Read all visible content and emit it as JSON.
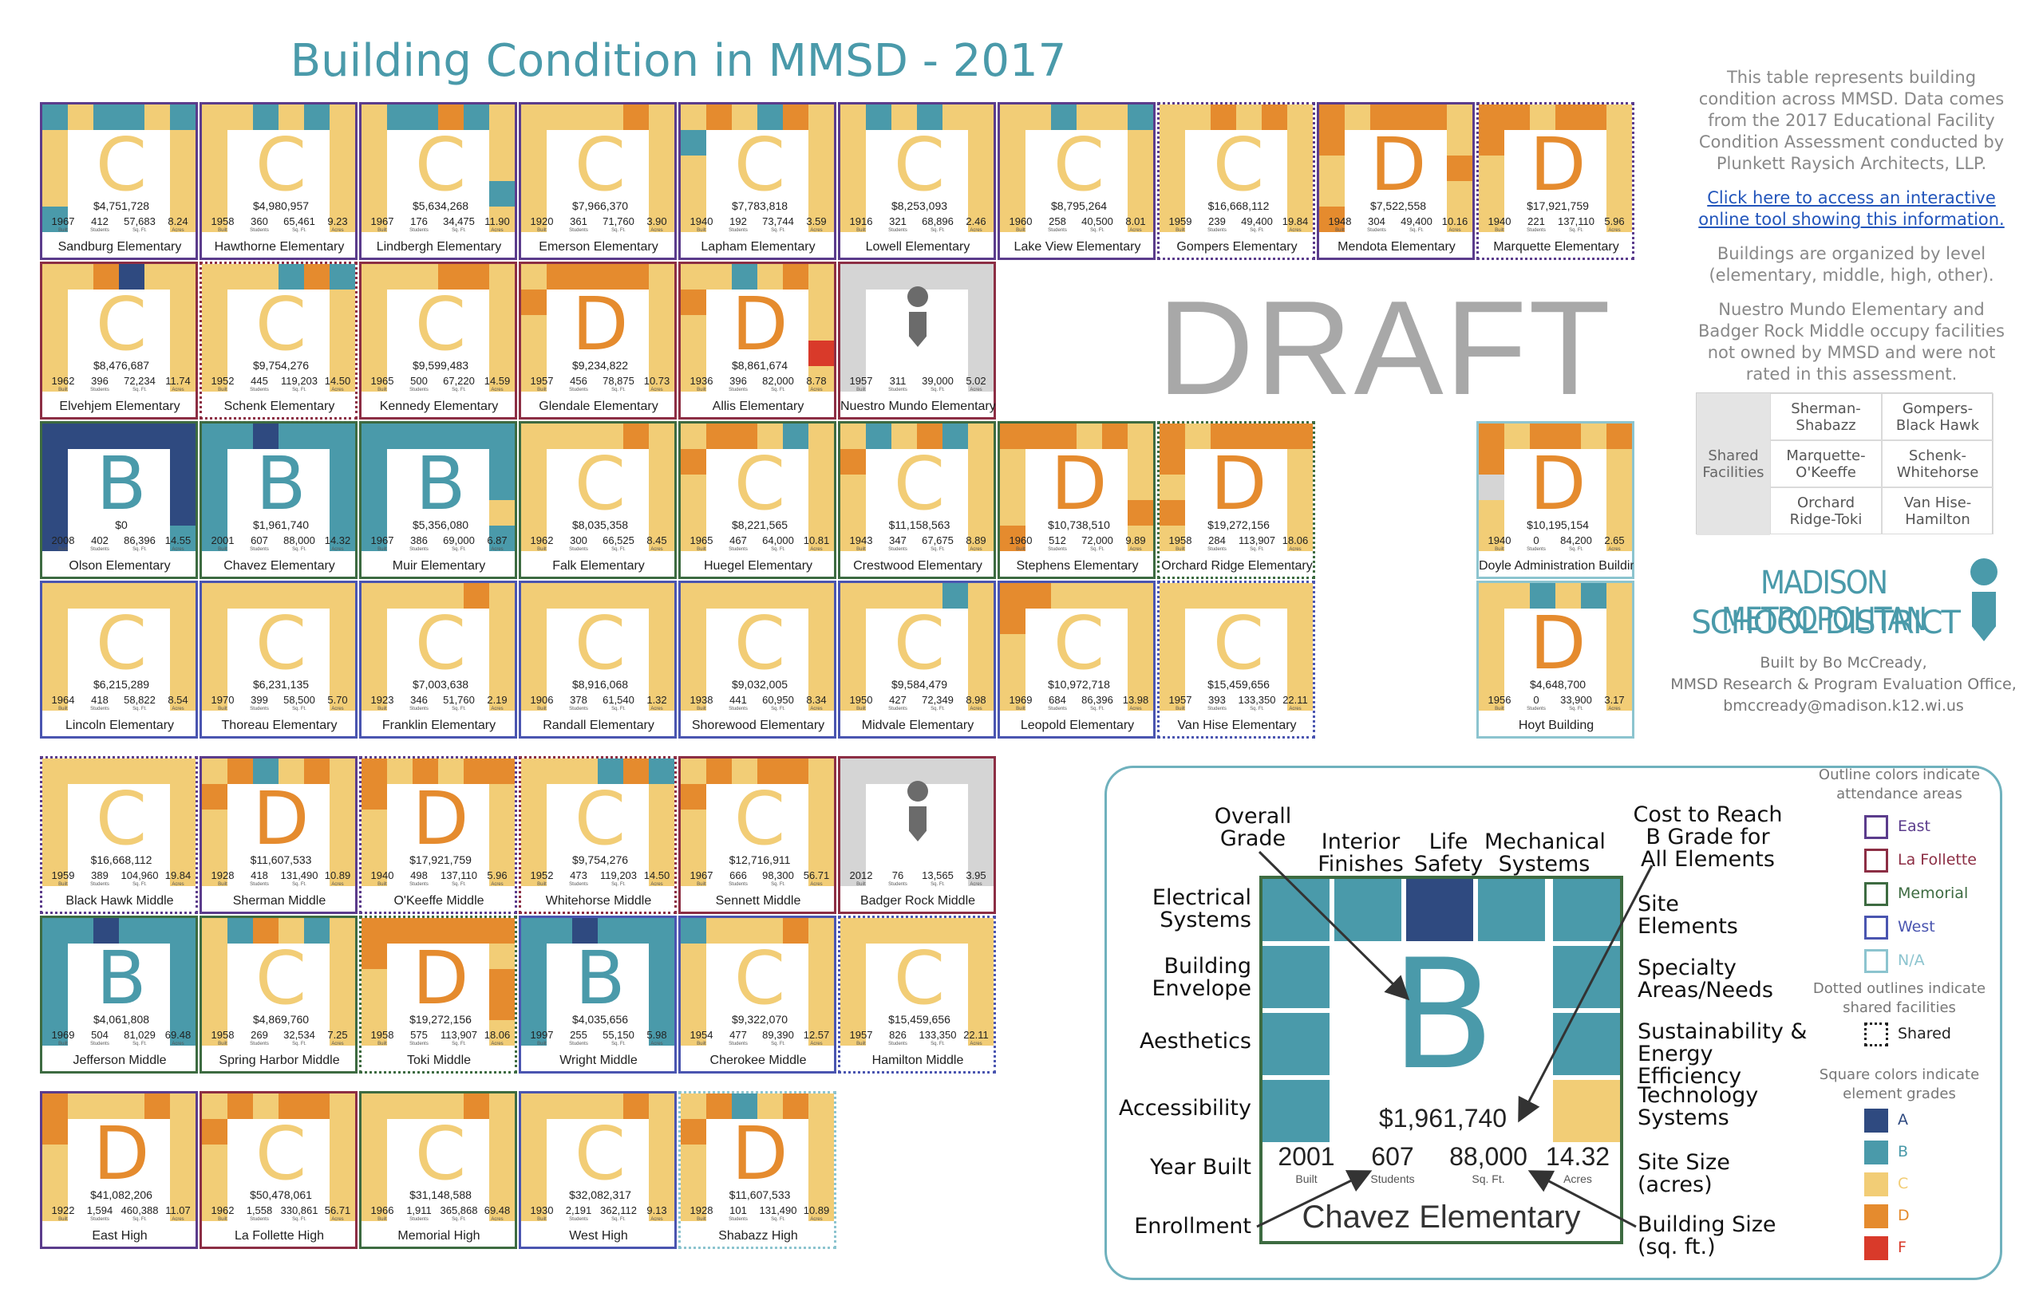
{
  "title": "Building Condition in MMSD - 2017",
  "watermark": "DRAFT",
  "colors": {
    "A": "#2f4a80",
    "B": "#4a9aaa",
    "C": "#f2cd76",
    "D": "#e58b2e",
    "F": "#d93a2a",
    "gray": "#d5d5d5",
    "East": "#5b3c8c",
    "La Follette": "#8c2e44",
    "Memorial": "#3d6b41",
    "West": "#4a55b0",
    "N/A": "#8cc4cf"
  },
  "unit_labels": [
    "Built",
    "Students",
    "Sq. Ft.",
    "Acres"
  ],
  "tiles": [
    {
      "name": "Sandburg Elementary",
      "grade": "C",
      "cost": "$4,751,728",
      "year": "1967",
      "students": "412",
      "sqft": "57,683",
      "acres": "8.24",
      "outline": "East",
      "shared": false,
      "squares": "BCBBCBCCCCCCBCDCC"
    },
    {
      "name": "Hawthorne Elementary",
      "grade": "C",
      "cost": "$4,980,957",
      "year": "1958",
      "students": "360",
      "sqft": "65,461",
      "acres": "9.23",
      "outline": "East",
      "shared": false,
      "squares": "CCBCBCCCCCCCCCCCC"
    },
    {
      "name": "Lindbergh Elementary",
      "grade": "C",
      "cost": "$5,634,268",
      "year": "1967",
      "students": "176",
      "sqft": "34,475",
      "acres": "11.90",
      "outline": "East",
      "shared": false,
      "squares": "CBBDBCCCCCCBCCCCC"
    },
    {
      "name": "Emerson Elementary",
      "grade": "C",
      "cost": "$7,966,370",
      "year": "1920",
      "students": "361",
      "sqft": "71,760",
      "acres": "3.90",
      "outline": "East",
      "shared": false,
      "squares": "CCCCDCCCCCCCCCCCC"
    },
    {
      "name": "Lapham Elementary",
      "grade": "C",
      "cost": "$7,783,818",
      "year": "1940",
      "students": "192",
      "sqft": "73,744",
      "acres": "3.59",
      "outline": "East",
      "shared": false,
      "squares": "CDCBDCBCCCCCCCCCC"
    },
    {
      "name": "Lowell Elementary",
      "grade": "C",
      "cost": "$8,253,093",
      "year": "1916",
      "students": "321",
      "sqft": "68,896",
      "acres": "2.46",
      "outline": "East",
      "shared": false,
      "squares": "CBCBCCCCCCCCCCCCC"
    },
    {
      "name": "Lake View Elementary",
      "grade": "C",
      "cost": "$8,795,264",
      "year": "1960",
      "students": "258",
      "sqft": "40,500",
      "acres": "8.01",
      "outline": "East",
      "shared": false,
      "squares": "CCBCCBCCCCCCCCCCC"
    },
    {
      "name": "Gompers Elementary",
      "grade": "C",
      "cost": "$16,668,112",
      "year": "1959",
      "students": "239",
      "sqft": "49,400",
      "acres": "19.84",
      "outline": "East",
      "shared": true,
      "squares": "CCDCDCCCCCCCCCCCC"
    },
    {
      "name": "Mendota Elementary",
      "grade": "D",
      "cost": "$7,522,558",
      "year": "1948",
      "students": "304",
      "sqft": "49,400",
      "acres": "10.16",
      "outline": "East",
      "shared": false,
      "squares": "DCDDDCDCCDCCDCCDC"
    },
    {
      "name": "Marquette Elementary",
      "grade": "D",
      "cost": "$17,921,759",
      "year": "1940",
      "students": "221",
      "sqft": "137,110",
      "acres": "5.96",
      "outline": "East",
      "shared": true,
      "squares": "DDCDDCDCCCCCCCCCC"
    },
    {
      "name": "Elvehjem Elementary",
      "grade": "C",
      "cost": "$8,476,687",
      "year": "1962",
      "students": "396",
      "sqft": "72,234",
      "acres": "11.74",
      "outline": "La Follette",
      "shared": false,
      "squares": "CCDACCCCCCCCCCCCC"
    },
    {
      "name": "Schenk Elementary",
      "grade": "C",
      "cost": "$9,754,276",
      "year": "1952",
      "students": "445",
      "sqft": "119,203",
      "acres": "14.50",
      "outline": "La Follette",
      "shared": true,
      "squares": "CCCBDBCCCCCCCCCCC"
    },
    {
      "name": "Kennedy Elementary",
      "grade": "C",
      "cost": "$9,599,483",
      "year": "1965",
      "students": "500",
      "sqft": "67,220",
      "acres": "14.59",
      "outline": "La Follette",
      "shared": false,
      "squares": "CCCDDCCCCCCCCCCCC"
    },
    {
      "name": "Glendale Elementary",
      "grade": "D",
      "cost": "$9,234,822",
      "year": "1957",
      "students": "456",
      "sqft": "78,875",
      "acres": "10.73",
      "outline": "La Follette",
      "shared": false,
      "squares": "CDDDDCDCCCCCCCCCC"
    },
    {
      "name": "Allis Elementary",
      "grade": "D",
      "cost": "$8,861,674",
      "year": "1936",
      "students": "396",
      "sqft": "82,000",
      "acres": "8.78",
      "outline": "La Follette",
      "shared": false,
      "squares": "CCBCDCDCCCCFCCCCC"
    },
    {
      "name": "Nuestro Mundo Elementary",
      "grade": "",
      "cost": "",
      "year": "1957",
      "students": "311",
      "sqft": "39,000",
      "acres": "5.02",
      "outline": "La Follette",
      "shared": false,
      "squares": "GGGGGGGGGGGGGGGGG"
    },
    {
      "name": "Olson Elementary",
      "grade": "B",
      "cost": "$0",
      "year": "2008",
      "students": "402",
      "sqft": "86,396",
      "acres": "14.55",
      "outline": "Memorial",
      "shared": false,
      "squares": "AAAAAAAAAAAAABAAA"
    },
    {
      "name": "Chavez Elementary",
      "grade": "B",
      "cost": "$1,961,740",
      "year": "2001",
      "students": "607",
      "sqft": "88,000",
      "acres": "14.32",
      "outline": "Memorial",
      "shared": false,
      "squares": "BBABBBBBBBBBBBBCB"
    },
    {
      "name": "Muir Elementary",
      "grade": "B",
      "cost": "$5,356,080",
      "year": "1967",
      "students": "386",
      "sqft": "69,000",
      "acres": "6.87",
      "outline": "Memorial",
      "shared": false,
      "squares": "BBBBBBBBBBBCBBBBC"
    },
    {
      "name": "Falk Elementary",
      "grade": "C",
      "cost": "$8,035,358",
      "year": "1962",
      "students": "300",
      "sqft": "66,525",
      "acres": "8.45",
      "outline": "Memorial",
      "shared": false,
      "squares": "CCCCDCCCCCCCCCCCC"
    },
    {
      "name": "Huegel Elementary",
      "grade": "C",
      "cost": "$8,221,565",
      "year": "1965",
      "students": "467",
      "sqft": "64,000",
      "acres": "10.81",
      "outline": "Memorial",
      "shared": false,
      "squares": "CDDCBCDCCCCCCCCCC"
    },
    {
      "name": "Crestwood Elementary",
      "grade": "C",
      "cost": "$11,158,563",
      "year": "1943",
      "students": "347",
      "sqft": "67,675",
      "acres": "8.89",
      "outline": "Memorial",
      "shared": false,
      "squares": "CBCDBCDCCCCCCCCCC"
    },
    {
      "name": "Stephens Elementary",
      "grade": "D",
      "cost": "$10,738,510",
      "year": "1960",
      "students": "512",
      "sqft": "72,000",
      "acres": "9.89",
      "outline": "Memorial",
      "shared": false,
      "squares": "DDDCDCCCCCCDDCCCC"
    },
    {
      "name": "Orchard Ridge Elementary",
      "grade": "D",
      "cost": "$19,272,156",
      "year": "1958",
      "students": "284",
      "sqft": "113,907",
      "acres": "18.06",
      "outline": "Memorial",
      "shared": true,
      "squares": "DCDDDDDCCCDCCCCCC"
    },
    {
      "name": "Lincoln Elementary",
      "grade": "C",
      "cost": "$6,215,289",
      "year": "1964",
      "students": "418",
      "sqft": "58,822",
      "acres": "8.54",
      "outline": "West",
      "shared": false,
      "squares": "CCCCCCCCCCCCCCCCC"
    },
    {
      "name": "Thoreau Elementary",
      "grade": "C",
      "cost": "$6,231,135",
      "year": "1970",
      "students": "399",
      "sqft": "58,500",
      "acres": "5.70",
      "outline": "West",
      "shared": false,
      "squares": "CCCCCCCCCCCCCCCCC"
    },
    {
      "name": "Franklin Elementary",
      "grade": "C",
      "cost": "$7,003,638",
      "year": "1923",
      "students": "346",
      "sqft": "51,760",
      "acres": "2.19",
      "outline": "West",
      "shared": false,
      "squares": "CCCCDCCCCCCCCCCCC"
    },
    {
      "name": "Randall Elementary",
      "grade": "C",
      "cost": "$8,916,068",
      "year": "1906",
      "students": "378",
      "sqft": "61,540",
      "acres": "1.32",
      "outline": "West",
      "shared": false,
      "squares": "CCCCCCCCCCCCCCCCC"
    },
    {
      "name": "Shorewood Elementary",
      "grade": "C",
      "cost": "$9,032,005",
      "year": "1938",
      "students": "441",
      "sqft": "60,950",
      "acres": "8.34",
      "outline": "West",
      "shared": false,
      "squares": "CCCCCCCCCCCCCCCCC"
    },
    {
      "name": "Midvale Elementary",
      "grade": "C",
      "cost": "$9,584,479",
      "year": "1950",
      "students": "427",
      "sqft": "72,349",
      "acres": "8.98",
      "outline": "West",
      "shared": false,
      "squares": "CCCCBCCCCCCCCCCCC"
    },
    {
      "name": "Leopold Elementary",
      "grade": "C",
      "cost": "$10,972,718",
      "year": "1969",
      "students": "684",
      "sqft": "86,396",
      "acres": "13.98",
      "outline": "West",
      "shared": false,
      "squares": "DDCCCCDCCCCCCCCCC"
    },
    {
      "name": "Van Hise Elementary",
      "grade": "C",
      "cost": "$15,459,656",
      "year": "1957",
      "students": "393",
      "sqft": "133,350",
      "acres": "22.11",
      "outline": "West",
      "shared": true,
      "squares": "CCCCCCCCCCCCCCCCC"
    },
    {
      "name": "Doyle Administration Building",
      "grade": "D",
      "cost": "$10,195,154",
      "year": "1940",
      "students": "0",
      "sqft": "84,200",
      "acres": "2.65",
      "outline": "N/A",
      "shared": false,
      "squares": "DCDDCDDCGCCCCCCCC"
    },
    {
      "name": "Hoyt Building",
      "grade": "D",
      "cost": "$4,648,700",
      "year": "1956",
      "students": "0",
      "sqft": "33,900",
      "acres": "3.17",
      "outline": "N/A",
      "shared": false,
      "squares": "CCBCBCCCCCCCCCCCC"
    },
    {
      "name": "Black Hawk Middle",
      "grade": "C",
      "cost": "$16,668,112",
      "year": "1959",
      "students": "389",
      "sqft": "104,960",
      "acres": "19.84",
      "outline": "East",
      "shared": true,
      "squares": "CCCCCCCCCCCCCCCCC"
    },
    {
      "name": "Sherman Middle",
      "grade": "D",
      "cost": "$11,607,533",
      "year": "1928",
      "students": "418",
      "sqft": "131,490",
      "acres": "10.89",
      "outline": "East",
      "shared": false,
      "squares": "CDBCDCDCCCCCCCCCC"
    },
    {
      "name": "O'Keeffe Middle",
      "grade": "D",
      "cost": "$17,921,759",
      "year": "1940",
      "students": "498",
      "sqft": "137,110",
      "acres": "5.96",
      "outline": "East",
      "shared": true,
      "squares": "DCDCDDDCCCCCCCCCC"
    },
    {
      "name": "Whitehorse Middle",
      "grade": "C",
      "cost": "$9,754,276",
      "year": "1952",
      "students": "473",
      "sqft": "119,203",
      "acres": "14.50",
      "outline": "La Follette",
      "shared": true,
      "squares": "CCCBDBCCCCCCCCCCC"
    },
    {
      "name": "Sennett Middle",
      "grade": "C",
      "cost": "$12,716,911",
      "year": "1967",
      "students": "666",
      "sqft": "98,300",
      "acres": "56.71",
      "outline": "La Follette",
      "shared": false,
      "squares": "CDCDDCDCCCCCCCCCC"
    },
    {
      "name": "Badger Rock Middle",
      "grade": "",
      "cost": "",
      "year": "2012",
      "students": "76",
      "sqft": "13,565",
      "acres": "3.95",
      "outline": "La Follette",
      "shared": false,
      "squares": "GGGGGGGGGGGGGGGGG"
    },
    {
      "name": "Jefferson Middle",
      "grade": "B",
      "cost": "$4,061,808",
      "year": "1969",
      "students": "504",
      "sqft": "81,029",
      "acres": "69.48",
      "outline": "Memorial",
      "shared": false,
      "squares": "BBABBBBBBBBBBBBBB"
    },
    {
      "name": "Spring Harbor Middle",
      "grade": "C",
      "cost": "$4,869,760",
      "year": "1958",
      "students": "269",
      "sqft": "32,534",
      "acres": "7.25",
      "outline": "Memorial",
      "shared": false,
      "squares": "CBDCBCCCCCCCCCCCC"
    },
    {
      "name": "Toki Middle",
      "grade": "D",
      "cost": "$19,272,156",
      "year": "1958",
      "students": "575",
      "sqft": "113,907",
      "acres": "18.06",
      "outline": "Memorial",
      "shared": true,
      "squares": "DDDDDDDCCDCDCCCCC"
    },
    {
      "name": "Wright Middle",
      "grade": "B",
      "cost": "$4,035,656",
      "year": "1997",
      "students": "255",
      "sqft": "55,150",
      "acres": "5.98",
      "outline": "West",
      "shared": false,
      "squares": "BBABBBBBBBBBBBBBB"
    },
    {
      "name": "Cherokee Middle",
      "grade": "C",
      "cost": "$9,322,070",
      "year": "1954",
      "students": "477",
      "sqft": "89,390",
      "acres": "12.57",
      "outline": "West",
      "shared": false,
      "squares": "BCCCDCCCCCCCCCCCC"
    },
    {
      "name": "Hamilton Middle",
      "grade": "C",
      "cost": "$15,459,656",
      "year": "1957",
      "students": "826",
      "sqft": "133,350",
      "acres": "22.11",
      "outline": "West",
      "shared": true,
      "squares": "CCCCCCCCCCCCCCCCC"
    },
    {
      "name": "East High",
      "grade": "D",
      "cost": "$41,082,206",
      "year": "1922",
      "students": "1,594",
      "sqft": "460,388",
      "acres": "11.07",
      "outline": "East",
      "shared": false,
      "squares": "DCCCDCDCCCCCCCCCC"
    },
    {
      "name": "La Follette High",
      "grade": "C",
      "cost": "$50,478,061",
      "year": "1962",
      "students": "1,558",
      "sqft": "330,861",
      "acres": "56.71",
      "outline": "La Follette",
      "shared": false,
      "squares": "CDCDDCDCCCCCCCCCC"
    },
    {
      "name": "Memorial High",
      "grade": "C",
      "cost": "$31,148,588",
      "year": "1966",
      "students": "1,911",
      "sqft": "365,868",
      "acres": "69.48",
      "outline": "Memorial",
      "shared": false,
      "squares": "CCCCDCCCCCCCCCCCC"
    },
    {
      "name": "West High",
      "grade": "C",
      "cost": "$32,082,317",
      "year": "1930",
      "students": "2,191",
      "sqft": "362,112",
      "acres": "9.13",
      "outline": "West",
      "shared": false,
      "squares": "CCCCDCCCCCCCCCCCC"
    },
    {
      "name": "Shabazz High",
      "grade": "D",
      "cost": "$11,607,533",
      "year": "1928",
      "students": "101",
      "sqft": "131,490",
      "acres": "10.89",
      "outline": "N/A",
      "shared": true,
      "squares": "CDBCDCDCCCCCCCCCC"
    }
  ],
  "info": {
    "p1": "This table represents building condition across MMSD. Data comes from the 2017 Educational Facility Condition Assessment conducted by Plunkett Raysich Architects, LLP.",
    "link": "Click here to access an interactive online tool showing this information.",
    "p2": "Buildings are organized by level (elementary, middle, high, other).",
    "p3": "Nuestro Mundo Elementary and Badger Rock Middle occupy facilities not owned by MMSD and were not rated in this assessment."
  },
  "shared_facilities": {
    "header": "Shared Facilities",
    "pairs": [
      "Sherman-\nShabazz",
      "Gompers-\nBlack Hawk",
      "Marquette-\nO'Keeffe",
      "Schenk-\nWhitehorse",
      "Orchard\nRidge-Toki",
      "Van Hise-\nHamilton"
    ]
  },
  "logo": {
    "line1": "MADISON METROPOLITAN",
    "line2": "SCHOOL DISTRICT"
  },
  "credit": [
    "Built by Bo McCready,",
    "MMSD Research & Program Evaluation Office,",
    "bmccready@madison.k12.wi.us"
  ],
  "example": {
    "grade": "B",
    "cost": "$1,961,740",
    "year": "2001",
    "students": "607",
    "sqft": "88,000",
    "acres": "14.32",
    "name": "Chavez Elementary",
    "units": [
      "Built",
      "Students",
      "Sq. Ft.",
      "Acres"
    ],
    "labels": {
      "overall": "Overall\nGrade",
      "interior": "Interior\nFinishes",
      "life": "Life\nSafety",
      "mechanical": "Mechanical\nSystems",
      "cost": "Cost to Reach\nB Grade for\nAll Elements",
      "electrical": "Electrical\nSystems",
      "envelope": "Building\nEnvelope",
      "aesthetics": "Aesthetics",
      "accessibility": "Accessibility",
      "year": "Year Built",
      "enrollment": "Enrollment",
      "site": "Site\nElements",
      "specialty": "Specialty\nAreas/Needs",
      "sustainability": "Sustainability &\nEnergy Efficiency",
      "technology": "Technology\nSystems",
      "sitesize": "Site Size (acres)",
      "buildingsize": "Building Size (sq. ft.)"
    }
  },
  "key": {
    "outline_header": "Outline colors indicate\nattendance areas",
    "outlines": [
      "East",
      "La Follette",
      "Memorial",
      "West",
      "N/A"
    ],
    "dotted_header": "Dotted outlines indicate\nshared facilities",
    "dotted_label": "Shared",
    "square_header": "Square colors indicate\nelement grades",
    "grades": [
      "A",
      "B",
      "C",
      "D",
      "F"
    ]
  }
}
